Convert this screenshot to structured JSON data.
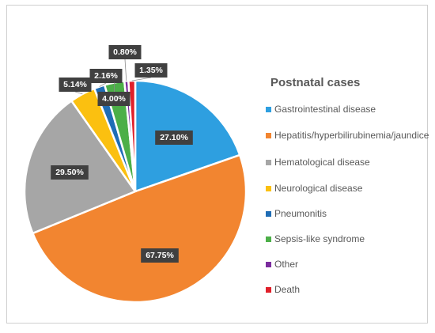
{
  "chart_data": {
    "type": "pie",
    "title": "Postnatal cases",
    "legend_position": "right",
    "slices": [
      {
        "name": "Gastrointestinal disease",
        "value": 27.1,
        "label": "27.10%",
        "color": "#2E9FE0"
      },
      {
        "name": "Hepatitis/hyperbilirubinemia/jaundice",
        "value": 67.75,
        "label": "67.75%",
        "color": "#F28530"
      },
      {
        "name": "Hematological disease",
        "value": 29.5,
        "label": "29.50%",
        "color": "#A6A6A6"
      },
      {
        "name": "Neurological disease",
        "value": 5.14,
        "label": "5.14%",
        "color": "#FBC010"
      },
      {
        "name": "Pneumonitis",
        "value": 2.16,
        "label": "2.16%",
        "color": "#1F6DB5"
      },
      {
        "name": "Sepsis-like syndrome",
        "value": 4.0,
        "label": "4.00%",
        "color": "#4CAF48"
      },
      {
        "name": "Other",
        "value": 0.8,
        "label": "0.80%",
        "color": "#7B2C9E"
      },
      {
        "name": "Death",
        "value": 1.35,
        "label": "1.35%",
        "color": "#E0202A"
      }
    ]
  },
  "legend": {
    "title": "Postnatal cases",
    "items": [
      {
        "text": "Gastrointestinal disease",
        "color": "#2E9FE0"
      },
      {
        "text": "Hepatitis/hyperbilirubinemia/jaundice",
        "color": "#F28530"
      },
      {
        "text": "Hematological disease",
        "color": "#A6A6A6"
      },
      {
        "text": "Neurological disease",
        "color": "#FBC010"
      },
      {
        "text": "Pneumonitis",
        "color": "#1F6DB5"
      },
      {
        "text": "Sepsis-like syndrome",
        "color": "#4CAF48"
      },
      {
        "text": "Other",
        "color": "#7B2C9E"
      },
      {
        "text": "Death",
        "color": "#E0202A"
      }
    ]
  }
}
